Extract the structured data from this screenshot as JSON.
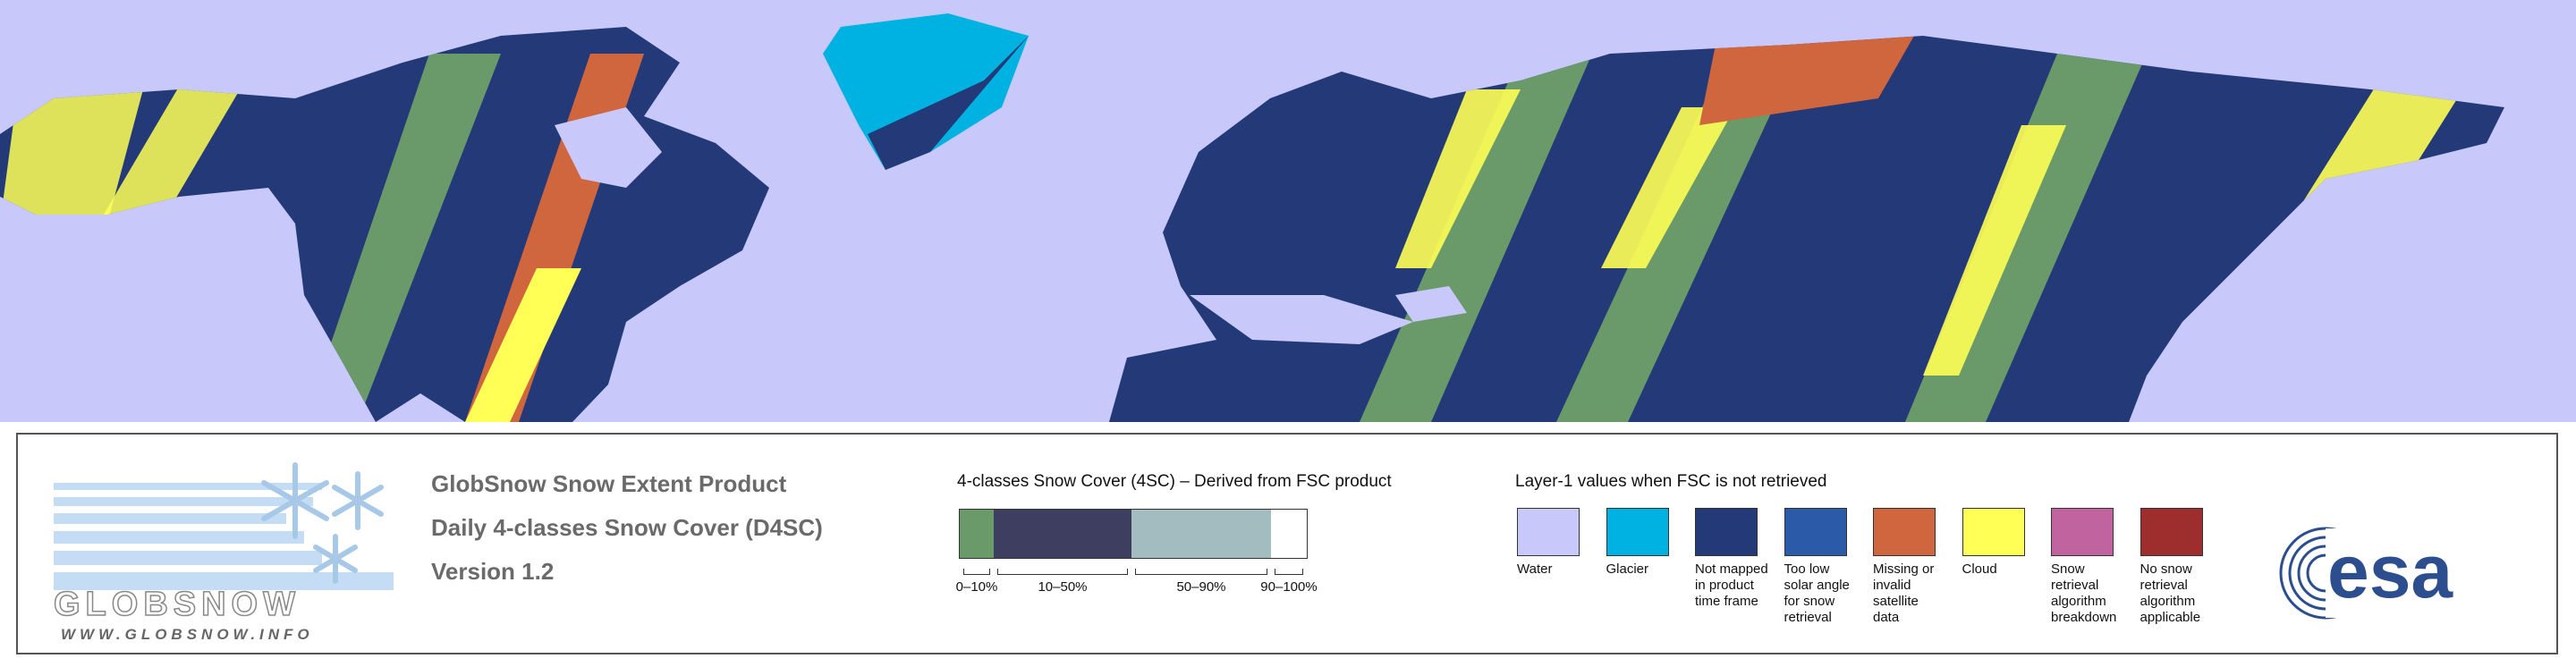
{
  "logo": {
    "wordmark": "GLOBSNOW",
    "url": "WWW.GLOBSNOW.INFO"
  },
  "product_lines": [
    "GlobSnow Snow Extent Product",
    "Daily 4-classes Snow Cover (D4SC)",
    "Version 1.2"
  ],
  "fsc": {
    "title": "4-classes Snow Cover (4SC) – Derived from FSC product",
    "classes": [
      {
        "label": "0–10%",
        "color": "#6b9a6a"
      },
      {
        "label": "10–50%",
        "color": "#3e3e60"
      },
      {
        "label": "50–90%",
        "color": "#a3bcc0"
      },
      {
        "label": "90–100%",
        "color": "#ffffff"
      }
    ]
  },
  "layer1": {
    "title": "Layer-1 values when FSC is not retrieved",
    "items": [
      {
        "label": "Water",
        "color": "#c8c8fa"
      },
      {
        "label": "Glacier",
        "color": "#00b2e2"
      },
      {
        "label": "Not mapped in product time frame",
        "color": "#243a78"
      },
      {
        "label": "Too low solar angle for snow retrieval",
        "color": "#2a5aa8"
      },
      {
        "label": "Missing or invalid satellite data",
        "color": "#d0663e"
      },
      {
        "label": "Cloud",
        "color": "#ffff55"
      },
      {
        "label": "Snow retrieval algorithm breakdown",
        "color": "#c0639e"
      },
      {
        "label": "No snow retrieval algorithm applicable",
        "color": "#9e2d2d"
      }
    ]
  },
  "esa_logo": "esa"
}
